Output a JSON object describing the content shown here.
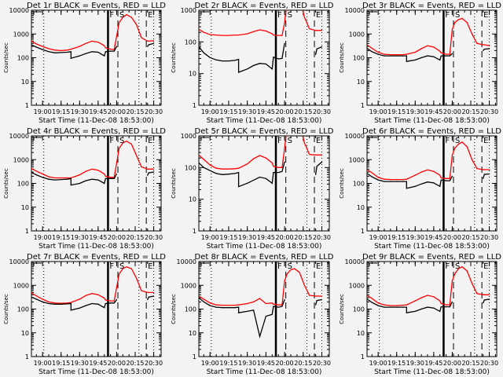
{
  "chart_data": [
    {
      "title": "Det 1r BLACK = Events, RED = LLD",
      "ylim": [
        1,
        10000
      ]
    },
    {
      "title": "Det 2r BLACK = Events, RED = LLD",
      "ylim": [
        1,
        1000
      ]
    },
    {
      "title": "Det 3r BLACK = Events, RED = LLD",
      "ylim": [
        1,
        10000
      ]
    },
    {
      "title": "Det 4r BLACK = Events, RED = LLD",
      "ylim": [
        1,
        10000
      ]
    },
    {
      "title": "Det 5r BLACK = Events, RED = LLD",
      "ylim": [
        1,
        1000
      ]
    },
    {
      "title": "Det 6r BLACK = Events, RED = LLD",
      "ylim": [
        1,
        10000
      ]
    },
    {
      "title": "Det 7r BLACK = Events, RED = LLD",
      "ylim": [
        1,
        10000
      ]
    },
    {
      "title": "Det 8r BLACK = Events, RED = LLD",
      "ylim": [
        1,
        10000
      ]
    },
    {
      "title": "Det 9r BLACK = Events, RED = LLD",
      "ylim": [
        1,
        10000
      ]
    }
  ],
  "common": {
    "type": "line",
    "yscale": "log",
    "xlabel": "Start Time (11-Dec-08 18:53:00)",
    "ylabel": "Counts/sec",
    "xlim": [
      "18:51",
      "20:36"
    ],
    "xticks": [
      "19:00",
      "19:15",
      "19:30",
      "19:45",
      "20:00",
      "20:15",
      "20:30"
    ],
    "colors": {
      "events": "#000000",
      "lld": "#ff0000",
      "background": "#f3f3f3"
    },
    "x": [
      "18:51",
      "18:55",
      "19:00",
      "19:05",
      "19:10",
      "19:15",
      "19:20",
      "19:23",
      "19:23",
      "19:30",
      "19:35",
      "19:40",
      "19:45",
      "19:50",
      "19:51",
      "19:55",
      "19:58",
      "20:00",
      "20:02",
      "20:05",
      "20:08",
      "20:12",
      "20:16",
      "20:20",
      "20:25",
      "20:26",
      "20:30"
    ],
    "markers": [
      {
        "time": "19:01",
        "style": "dotted",
        "label": ""
      },
      {
        "time": "19:53",
        "style": "solid",
        "label": "F"
      },
      {
        "time": "20:01",
        "style": "dashed",
        "label": "S"
      },
      {
        "time": "20:18",
        "style": "dotted",
        "label": ""
      },
      {
        "time": "20:24",
        "style": "dashed",
        "label": "E"
      },
      {
        "time": "20:30",
        "style": "dotted",
        "label": ""
      }
    ]
  },
  "series_data": [
    {
      "lld": [
        500,
        380,
        300,
        240,
        210,
        200,
        210,
        230,
        230,
        300,
        400,
        500,
        450,
        320,
        260,
        230,
        220,
        800,
        3000,
        5000,
        6500,
        5000,
        2500,
        700,
        500,
        500,
        520
      ],
      "events": [
        350,
        280,
        220,
        180,
        160,
        165,
        170,
        180,
        95,
        120,
        150,
        180,
        170,
        120,
        180,
        190,
        190,
        300,
        null,
        null,
        null,
        null,
        null,
        null,
        300,
        350,
        400
      ]
    },
    {
      "lld": [
        250,
        200,
        170,
        165,
        160,
        160,
        165,
        165,
        165,
        180,
        210,
        240,
        220,
        180,
        165,
        160,
        160,
        400,
        2000,
        3000,
        3000,
        2500,
        600,
        260,
        230,
        230,
        230
      ],
      "events": [
        70,
        45,
        32,
        27,
        25,
        25,
        26,
        28,
        11,
        14,
        18,
        21,
        20,
        14,
        33,
        29,
        30,
        90,
        null,
        null,
        null,
        null,
        null,
        null,
        40,
        60,
        70
      ]
    },
    {
      "lld": [
        350,
        250,
        170,
        140,
        135,
        135,
        135,
        140,
        140,
        170,
        240,
        320,
        280,
        190,
        160,
        140,
        140,
        1500,
        3000,
        4000,
        4500,
        3000,
        1000,
        400,
        350,
        350,
        320
      ],
      "events": [
        250,
        180,
        140,
        120,
        120,
        120,
        120,
        120,
        70,
        80,
        100,
        120,
        110,
        80,
        120,
        120,
        120,
        150,
        null,
        null,
        null,
        null,
        null,
        null,
        200,
        230,
        240
      ]
    },
    {
      "lld": [
        420,
        330,
        250,
        190,
        170,
        170,
        170,
        170,
        170,
        230,
        320,
        400,
        360,
        250,
        200,
        180,
        180,
        700,
        3000,
        5000,
        6000,
        4500,
        1500,
        500,
        400,
        400,
        400
      ],
      "events": [
        290,
        230,
        180,
        150,
        140,
        145,
        150,
        160,
        85,
        100,
        130,
        150,
        140,
        100,
        160,
        160,
        160,
        250,
        null,
        null,
        null,
        null,
        null,
        null,
        220,
        280,
        300
      ]
    },
    {
      "lld": [
        250,
        180,
        120,
        95,
        90,
        90,
        92,
        95,
        95,
        130,
        190,
        240,
        200,
        140,
        110,
        100,
        100,
        400,
        2000,
        3000,
        3000,
        2500,
        600,
        260,
        250,
        250,
        250
      ],
      "events": [
        140,
        100,
        80,
        65,
        60,
        62,
        65,
        70,
        25,
        32,
        40,
        50,
        45,
        32,
        70,
        70,
        75,
        150,
        null,
        null,
        null,
        null,
        null,
        null,
        60,
        110,
        150
      ]
    },
    {
      "lld": [
        380,
        280,
        180,
        150,
        145,
        145,
        145,
        150,
        150,
        220,
        300,
        370,
        320,
        220,
        170,
        160,
        160,
        1500,
        3000,
        4500,
        5500,
        3500,
        1000,
        420,
        380,
        380,
        380
      ],
      "events": [
        260,
        190,
        140,
        120,
        120,
        120,
        120,
        120,
        62,
        75,
        95,
        115,
        105,
        75,
        140,
        130,
        130,
        200,
        null,
        null,
        null,
        null,
        null,
        null,
        160,
        240,
        250
      ]
    },
    {
      "lld": [
        480,
        360,
        260,
        200,
        180,
        175,
        180,
        190,
        190,
        260,
        370,
        450,
        400,
        290,
        240,
        220,
        220,
        800,
        3000,
        5000,
        6000,
        5000,
        2000,
        600,
        500,
        500,
        500
      ],
      "events": [
        320,
        260,
        200,
        170,
        160,
        160,
        165,
        170,
        90,
        110,
        140,
        170,
        160,
        115,
        170,
        180,
        180,
        250,
        null,
        null,
        null,
        null,
        null,
        null,
        250,
        320,
        350
      ]
    },
    {
      "lld": [
        350,
        260,
        180,
        150,
        145,
        145,
        145,
        150,
        150,
        170,
        200,
        280,
        170,
        180,
        160,
        150,
        150,
        1500,
        3000,
        4500,
        5000,
        3500,
        1000,
        380,
        350,
        350,
        350
      ],
      "events": [
        300,
        200,
        140,
        120,
        115,
        115,
        115,
        120,
        70,
        80,
        90,
        7,
        50,
        60,
        130,
        120,
        130,
        250,
        null,
        null,
        null,
        null,
        null,
        null,
        150,
        230,
        250
      ]
    },
    {
      "lld": [
        380,
        280,
        180,
        150,
        140,
        140,
        145,
        150,
        150,
        220,
        300,
        380,
        330,
        220,
        170,
        150,
        150,
        1500,
        3000,
        5000,
        6000,
        4000,
        1200,
        450,
        400,
        400,
        400
      ],
      "events": [
        260,
        190,
        140,
        120,
        120,
        120,
        120,
        120,
        70,
        80,
        100,
        120,
        110,
        80,
        125,
        125,
        125,
        200,
        null,
        null,
        null,
        null,
        null,
        null,
        180,
        240,
        260
      ]
    }
  ]
}
